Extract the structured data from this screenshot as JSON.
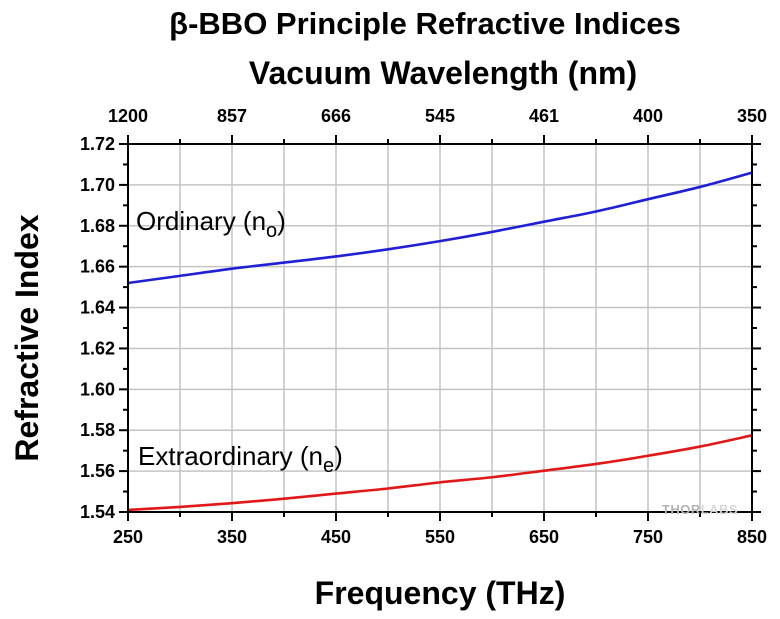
{
  "chart_data": {
    "type": "line",
    "title": "β-BBO Principle Refractive Indices",
    "xlabel": "Frequency (THz)",
    "x2label": "Vacuum Wavelength (nm)",
    "ylabel": "Refractive Index",
    "xlim": [
      250,
      850
    ],
    "ylim": [
      1.54,
      1.72
    ],
    "xticks": [
      "250",
      "350",
      "450",
      "550",
      "650",
      "750",
      "850"
    ],
    "x2ticks": [
      "1200",
      "857",
      "666",
      "545",
      "461",
      "400",
      "350"
    ],
    "yticks": [
      "1.54",
      "1.56",
      "1.58",
      "1.60",
      "1.62",
      "1.64",
      "1.66",
      "1.68",
      "1.70",
      "1.72"
    ],
    "grid": true,
    "series": [
      {
        "name": "Ordinary",
        "name_sub": "o",
        "color": "#1f1fd6",
        "x": [
          250,
          300,
          350,
          400,
          450,
          500,
          550,
          600,
          650,
          700,
          750,
          800,
          850
        ],
        "y": [
          1.652,
          1.6555,
          1.659,
          1.662,
          1.665,
          1.6685,
          1.6725,
          1.677,
          1.682,
          1.687,
          1.693,
          1.699,
          1.706
        ]
      },
      {
        "name": "Extraordinary",
        "name_sub": "e",
        "color": "#e01818",
        "x": [
          250,
          300,
          350,
          400,
          450,
          500,
          550,
          600,
          650,
          700,
          750,
          800,
          850
        ],
        "y": [
          1.541,
          1.5425,
          1.5443,
          1.5465,
          1.549,
          1.5515,
          1.5545,
          1.557,
          1.5602,
          1.5635,
          1.5675,
          1.572,
          1.5775
        ]
      }
    ]
  },
  "logo": {
    "text_dark": "THOR",
    "text_light": "LABS"
  }
}
